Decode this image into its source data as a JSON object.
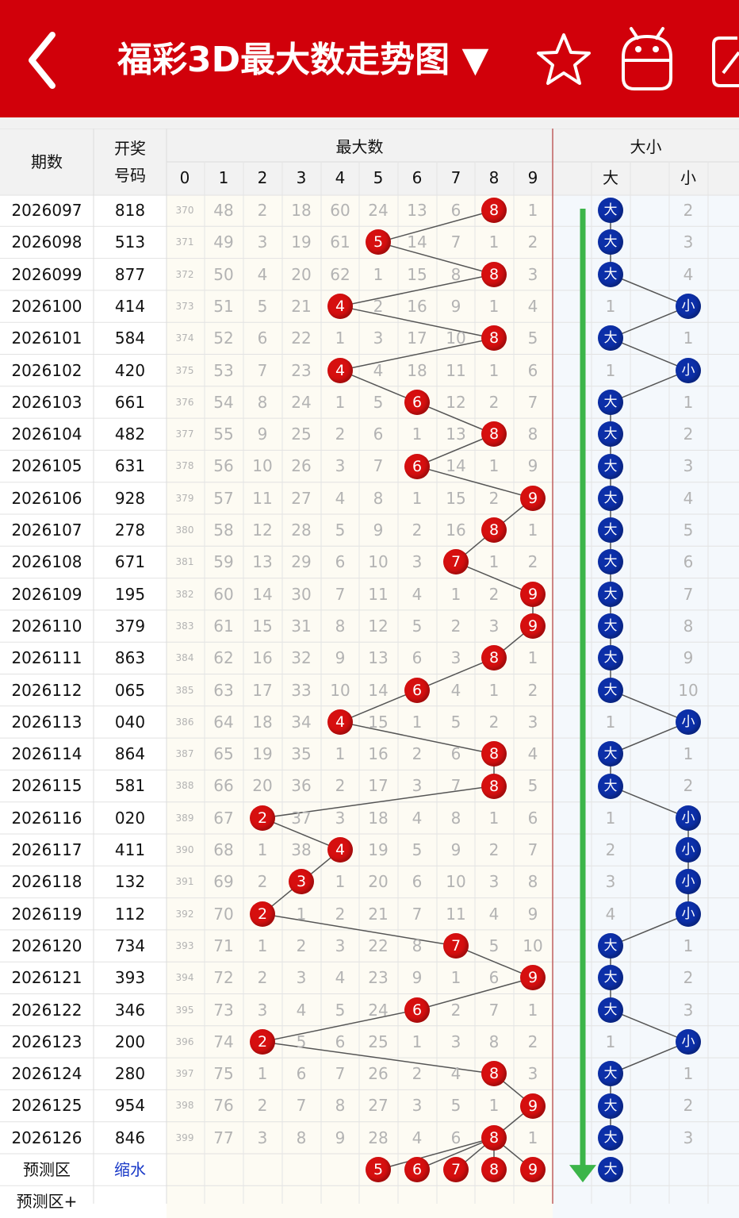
{
  "header": {
    "title": "福彩3D最大数走势图 ▼",
    "icons": [
      "back-arrow-icon",
      "star-icon",
      "android-icon",
      "edit-icon"
    ],
    "bg_color": "#d1000a"
  },
  "table": {
    "col_period": "期数",
    "col_draw_line1": "开奖",
    "col_draw_line2": "号码",
    "group_max": "最大数",
    "group_size": "大小",
    "digit_headers": [
      "0",
      "1",
      "2",
      "3",
      "4",
      "5",
      "6",
      "7",
      "8",
      "9"
    ],
    "size_headers": [
      "大",
      "",
      "小"
    ],
    "rows": [
      {
        "period": "2026097",
        "draw": "818",
        "max": 8,
        "miss": [
          "370",
          "48",
          "2",
          "18",
          "60",
          "24",
          "13",
          "6",
          "",
          "1"
        ],
        "size": "大",
        "size_miss": [
          "",
          "",
          "2"
        ]
      },
      {
        "period": "2026098",
        "draw": "513",
        "max": 5,
        "miss": [
          "371",
          "49",
          "3",
          "19",
          "61",
          "",
          "14",
          "7",
          "1",
          "2"
        ],
        "size": "大",
        "size_miss": [
          "",
          "",
          "3"
        ]
      },
      {
        "period": "2026099",
        "draw": "877",
        "max": 8,
        "miss": [
          "372",
          "50",
          "4",
          "20",
          "62",
          "1",
          "15",
          "8",
          "",
          "3"
        ],
        "size": "大",
        "size_miss": [
          "",
          "",
          "4"
        ]
      },
      {
        "period": "2026100",
        "draw": "414",
        "max": 4,
        "miss": [
          "373",
          "51",
          "5",
          "21",
          "",
          "2",
          "16",
          "9",
          "1",
          "4"
        ],
        "size": "小",
        "size_miss": [
          "1",
          "",
          ""
        ]
      },
      {
        "period": "2026101",
        "draw": "584",
        "max": 8,
        "miss": [
          "374",
          "52",
          "6",
          "22",
          "1",
          "3",
          "17",
          "10",
          "",
          "5"
        ],
        "size": "大",
        "size_miss": [
          "",
          "",
          "1"
        ]
      },
      {
        "period": "2026102",
        "draw": "420",
        "max": 4,
        "miss": [
          "375",
          "53",
          "7",
          "23",
          "",
          "4",
          "18",
          "11",
          "1",
          "6"
        ],
        "size": "小",
        "size_miss": [
          "1",
          "",
          ""
        ]
      },
      {
        "period": "2026103",
        "draw": "661",
        "max": 6,
        "miss": [
          "376",
          "54",
          "8",
          "24",
          "1",
          "5",
          "",
          "12",
          "2",
          "7"
        ],
        "size": "大",
        "size_miss": [
          "",
          "",
          "1"
        ]
      },
      {
        "period": "2026104",
        "draw": "482",
        "max": 8,
        "miss": [
          "377",
          "55",
          "9",
          "25",
          "2",
          "6",
          "1",
          "13",
          "",
          "8"
        ],
        "size": "大",
        "size_miss": [
          "",
          "",
          "2"
        ]
      },
      {
        "period": "2026105",
        "draw": "631",
        "max": 6,
        "miss": [
          "378",
          "56",
          "10",
          "26",
          "3",
          "7",
          "",
          "14",
          "1",
          "9"
        ],
        "size": "大",
        "size_miss": [
          "",
          "",
          "3"
        ]
      },
      {
        "period": "2026106",
        "draw": "928",
        "max": 9,
        "miss": [
          "379",
          "57",
          "11",
          "27",
          "4",
          "8",
          "1",
          "15",
          "2",
          ""
        ],
        "size": "大",
        "size_miss": [
          "",
          "",
          "4"
        ]
      },
      {
        "period": "2026107",
        "draw": "278",
        "max": 8,
        "miss": [
          "380",
          "58",
          "12",
          "28",
          "5",
          "9",
          "2",
          "16",
          "",
          "1"
        ],
        "size": "大",
        "size_miss": [
          "",
          "",
          "5"
        ]
      },
      {
        "period": "2026108",
        "draw": "671",
        "max": 7,
        "miss": [
          "381",
          "59",
          "13",
          "29",
          "6",
          "10",
          "3",
          "",
          "1",
          "2"
        ],
        "size": "大",
        "size_miss": [
          "",
          "",
          "6"
        ]
      },
      {
        "period": "2026109",
        "draw": "195",
        "max": 9,
        "miss": [
          "382",
          "60",
          "14",
          "30",
          "7",
          "11",
          "4",
          "1",
          "2",
          ""
        ],
        "size": "大",
        "size_miss": [
          "",
          "",
          "7"
        ]
      },
      {
        "period": "2026110",
        "draw": "379",
        "max": 9,
        "miss": [
          "383",
          "61",
          "15",
          "31",
          "8",
          "12",
          "5",
          "2",
          "3",
          ""
        ],
        "size": "大",
        "size_miss": [
          "",
          "",
          "8"
        ]
      },
      {
        "period": "2026111",
        "draw": "863",
        "max": 8,
        "miss": [
          "384",
          "62",
          "16",
          "32",
          "9",
          "13",
          "6",
          "3",
          "",
          "1"
        ],
        "size": "大",
        "size_miss": [
          "",
          "",
          "9"
        ]
      },
      {
        "period": "2026112",
        "draw": "065",
        "max": 6,
        "miss": [
          "385",
          "63",
          "17",
          "33",
          "10",
          "14",
          "",
          "4",
          "1",
          "2"
        ],
        "size": "大",
        "size_miss": [
          "",
          "",
          "10"
        ]
      },
      {
        "period": "2026113",
        "draw": "040",
        "max": 4,
        "miss": [
          "386",
          "64",
          "18",
          "34",
          "",
          "15",
          "1",
          "5",
          "2",
          "3"
        ],
        "size": "小",
        "size_miss": [
          "1",
          "",
          ""
        ]
      },
      {
        "period": "2026114",
        "draw": "864",
        "max": 8,
        "miss": [
          "387",
          "65",
          "19",
          "35",
          "1",
          "16",
          "2",
          "6",
          "",
          "4"
        ],
        "size": "大",
        "size_miss": [
          "",
          "",
          "1"
        ]
      },
      {
        "period": "2026115",
        "draw": "581",
        "max": 8,
        "miss": [
          "388",
          "66",
          "20",
          "36",
          "2",
          "17",
          "3",
          "7",
          "",
          "5"
        ],
        "size": "大",
        "size_miss": [
          "",
          "",
          "2"
        ]
      },
      {
        "period": "2026116",
        "draw": "020",
        "max": 2,
        "miss": [
          "389",
          "67",
          "",
          "37",
          "3",
          "18",
          "4",
          "8",
          "1",
          "6"
        ],
        "size": "小",
        "size_miss": [
          "1",
          "",
          ""
        ]
      },
      {
        "period": "2026117",
        "draw": "411",
        "max": 4,
        "miss": [
          "390",
          "68",
          "1",
          "38",
          "",
          "19",
          "5",
          "9",
          "2",
          "7"
        ],
        "size": "小",
        "size_miss": [
          "2",
          "",
          ""
        ]
      },
      {
        "period": "2026118",
        "draw": "132",
        "max": 3,
        "miss": [
          "391",
          "69",
          "2",
          "",
          "1",
          "20",
          "6",
          "10",
          "3",
          "8"
        ],
        "size": "小",
        "size_miss": [
          "3",
          "",
          ""
        ]
      },
      {
        "period": "2026119",
        "draw": "112",
        "max": 2,
        "miss": [
          "392",
          "70",
          "",
          "1",
          "2",
          "21",
          "7",
          "11",
          "4",
          "9"
        ],
        "size": "小",
        "size_miss": [
          "4",
          "",
          ""
        ]
      },
      {
        "period": "2026120",
        "draw": "734",
        "max": 7,
        "miss": [
          "393",
          "71",
          "1",
          "2",
          "3",
          "22",
          "8",
          "",
          "5",
          "10"
        ],
        "size": "大",
        "size_miss": [
          "",
          "",
          "1"
        ]
      },
      {
        "period": "2026121",
        "draw": "393",
        "max": 9,
        "miss": [
          "394",
          "72",
          "2",
          "3",
          "4",
          "23",
          "9",
          "1",
          "6",
          ""
        ],
        "size": "大",
        "size_miss": [
          "",
          "",
          "2"
        ]
      },
      {
        "period": "2026122",
        "draw": "346",
        "max": 6,
        "miss": [
          "395",
          "73",
          "3",
          "4",
          "5",
          "24",
          "",
          "2",
          "7",
          "1"
        ],
        "size": "大",
        "size_miss": [
          "",
          "",
          "3"
        ]
      },
      {
        "period": "2026123",
        "draw": "200",
        "max": 2,
        "miss": [
          "396",
          "74",
          "",
          "5",
          "6",
          "25",
          "1",
          "3",
          "8",
          "2"
        ],
        "size": "小",
        "size_miss": [
          "1",
          "",
          ""
        ]
      },
      {
        "period": "2026124",
        "draw": "280",
        "max": 8,
        "miss": [
          "397",
          "75",
          "1",
          "6",
          "7",
          "26",
          "2",
          "4",
          "",
          "3"
        ],
        "size": "大",
        "size_miss": [
          "",
          "",
          "1"
        ]
      },
      {
        "period": "2026125",
        "draw": "954",
        "max": 9,
        "miss": [
          "398",
          "76",
          "2",
          "7",
          "8",
          "27",
          "3",
          "5",
          "1",
          ""
        ],
        "size": "大",
        "size_miss": [
          "",
          "",
          "2"
        ]
      },
      {
        "period": "2026126",
        "draw": "846",
        "max": 8,
        "miss": [
          "399",
          "77",
          "3",
          "8",
          "9",
          "28",
          "4",
          "6",
          "",
          "1"
        ],
        "size": "大",
        "size_miss": [
          "",
          "",
          "3"
        ]
      }
    ],
    "predict": {
      "label": "预测区",
      "link": "缩水",
      "balls": [
        "5",
        "6",
        "7",
        "8",
        "9"
      ],
      "size": "大"
    },
    "predict_plus_label": "预测区+"
  },
  "colors": {
    "red_ball": "#d60f0f",
    "blue_ball": "#0c2fa8",
    "trend_line": "#555555",
    "green_arrow": "#3cb54a",
    "miss_text": "#b3b3b3",
    "zone_bg": "#fdfbf3",
    "size_zone_bg": "#f4f8fc"
  }
}
